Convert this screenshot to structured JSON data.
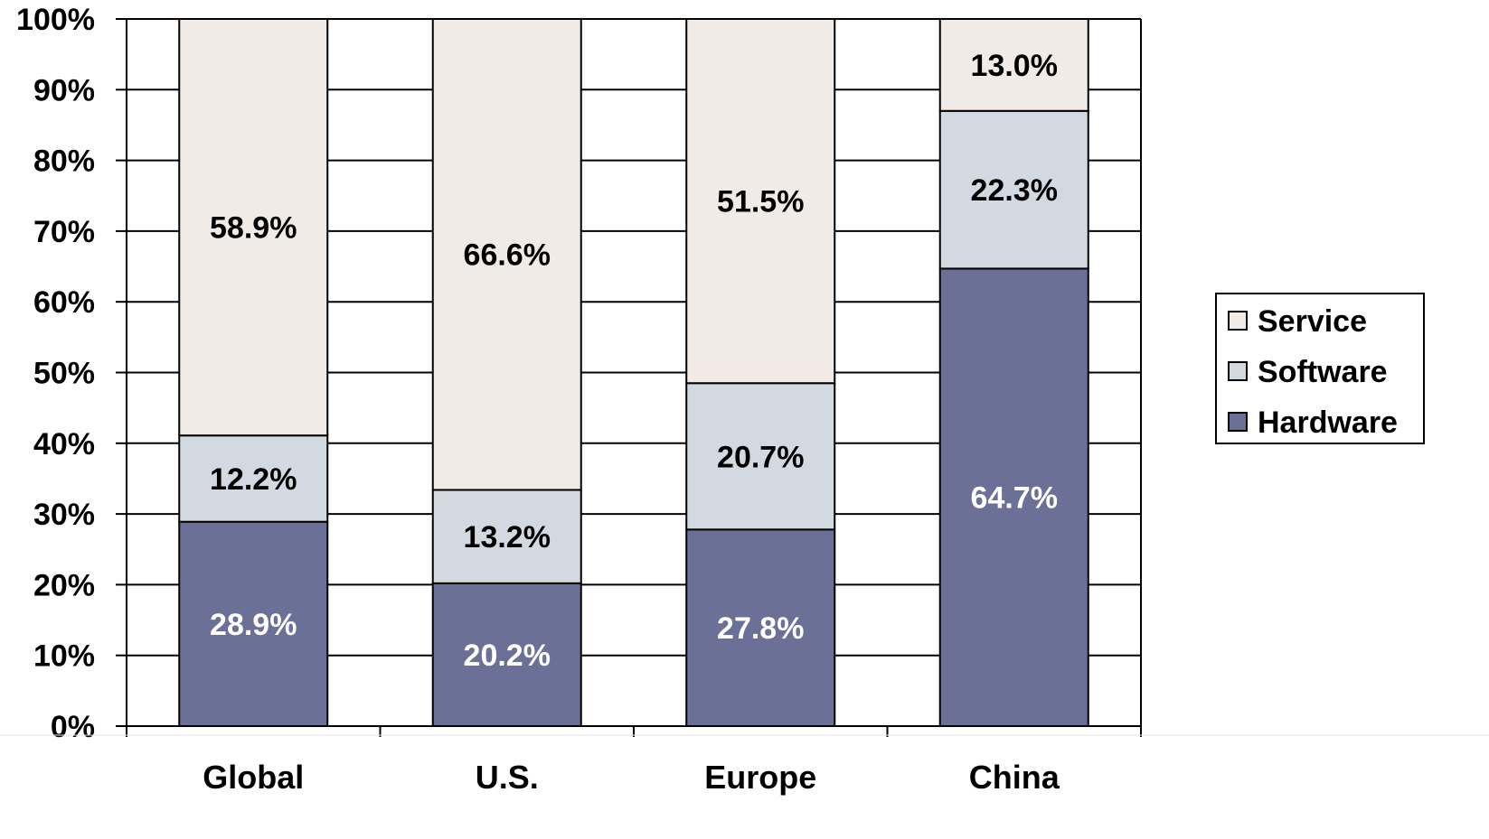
{
  "chart_data": {
    "type": "bar",
    "stacked": true,
    "categories": [
      "Global",
      "U.S.",
      "Europe",
      "China"
    ],
    "series": [
      {
        "name": "Hardware",
        "values": [
          28.9,
          20.2,
          27.8,
          64.7
        ],
        "labels": [
          "28.9%",
          "20.2%",
          "27.8%",
          "64.7%"
        ],
        "color": "#6b7096",
        "label_color": "#ffffff"
      },
      {
        "name": "Software",
        "values": [
          12.2,
          13.2,
          20.7,
          22.3
        ],
        "labels": [
          "12.2%",
          "13.2%",
          "20.7%",
          "22.3%"
        ],
        "color": "#d3d9e1",
        "label_color": "#000000"
      },
      {
        "name": "Service",
        "values": [
          58.9,
          66.6,
          51.5,
          13.0
        ],
        "labels": [
          "58.9%",
          "66.6%",
          "51.5%",
          "13.0%"
        ],
        "color": "#f0ebe6",
        "label_color": "#000000"
      }
    ],
    "y_ticks": [
      "0%",
      "10%",
      "20%",
      "30%",
      "40%",
      "50%",
      "60%",
      "70%",
      "80%",
      "90%",
      "100%"
    ],
    "ylim": [
      0,
      100
    ],
    "grid": true,
    "legend": {
      "position": "right",
      "entries": [
        "Service",
        "Software",
        "Hardware"
      ]
    },
    "title": "",
    "xlabel": "",
    "ylabel": ""
  }
}
